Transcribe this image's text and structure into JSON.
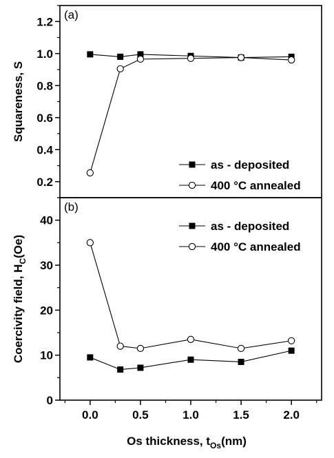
{
  "chart_data": [
    {
      "panel_label": "(a)",
      "type": "line",
      "ylabel": "Squareness, S",
      "xlim": [
        -0.3,
        2.3
      ],
      "ylim": [
        0.1,
        1.3
      ],
      "yticks": [
        "0.2",
        "0.4",
        "0.6",
        "0.8",
        "1.0",
        "1.2"
      ],
      "yticks_values": [
        0.2,
        0.4,
        0.6,
        0.8,
        1.0,
        1.2
      ],
      "legend_position": "bottom-right",
      "series": [
        {
          "name": "as - deposited",
          "marker": "filled-square",
          "x": [
            0.0,
            0.3,
            0.5,
            1.0,
            1.5,
            2.0
          ],
          "y": [
            0.995,
            0.98,
            0.995,
            0.985,
            0.975,
            0.98
          ]
        },
        {
          "name": "400 °C annealed",
          "marker": "open-circle",
          "x": [
            0.0,
            0.3,
            0.5,
            1.0,
            1.5,
            2.0
          ],
          "y": [
            0.255,
            0.905,
            0.965,
            0.97,
            0.975,
            0.96
          ]
        }
      ]
    },
    {
      "panel_label": "(b)",
      "type": "line",
      "ylabel": "Coercivity field, H",
      "ylabel_subscript": "C",
      "ylabel_unit": "(Oe)",
      "xlabel": "Os thickness, t",
      "xlabel_subscript": "Os",
      "xlabel_unit": "(nm)",
      "xlim": [
        -0.3,
        2.3
      ],
      "ylim": [
        0,
        45
      ],
      "xticks": [
        "0.0",
        "0.5",
        "1.0",
        "1.5",
        "2.0"
      ],
      "xticks_values": [
        0.0,
        0.5,
        1.0,
        1.5,
        2.0
      ],
      "yticks": [
        "0",
        "10",
        "20",
        "30",
        "40"
      ],
      "yticks_values": [
        0,
        10,
        20,
        30,
        40
      ],
      "legend_position": "top-right",
      "series": [
        {
          "name": "as - deposited",
          "marker": "filled-square",
          "x": [
            0.0,
            0.3,
            0.5,
            1.0,
            1.5,
            2.0
          ],
          "y": [
            9.5,
            6.8,
            7.2,
            9.0,
            8.5,
            11.0
          ]
        },
        {
          "name": "400 °C annealed",
          "marker": "open-circle",
          "x": [
            0.0,
            0.3,
            0.5,
            1.0,
            1.5,
            2.0
          ],
          "y": [
            35.0,
            12.0,
            11.5,
            13.5,
            11.5,
            13.2
          ]
        }
      ]
    }
  ]
}
